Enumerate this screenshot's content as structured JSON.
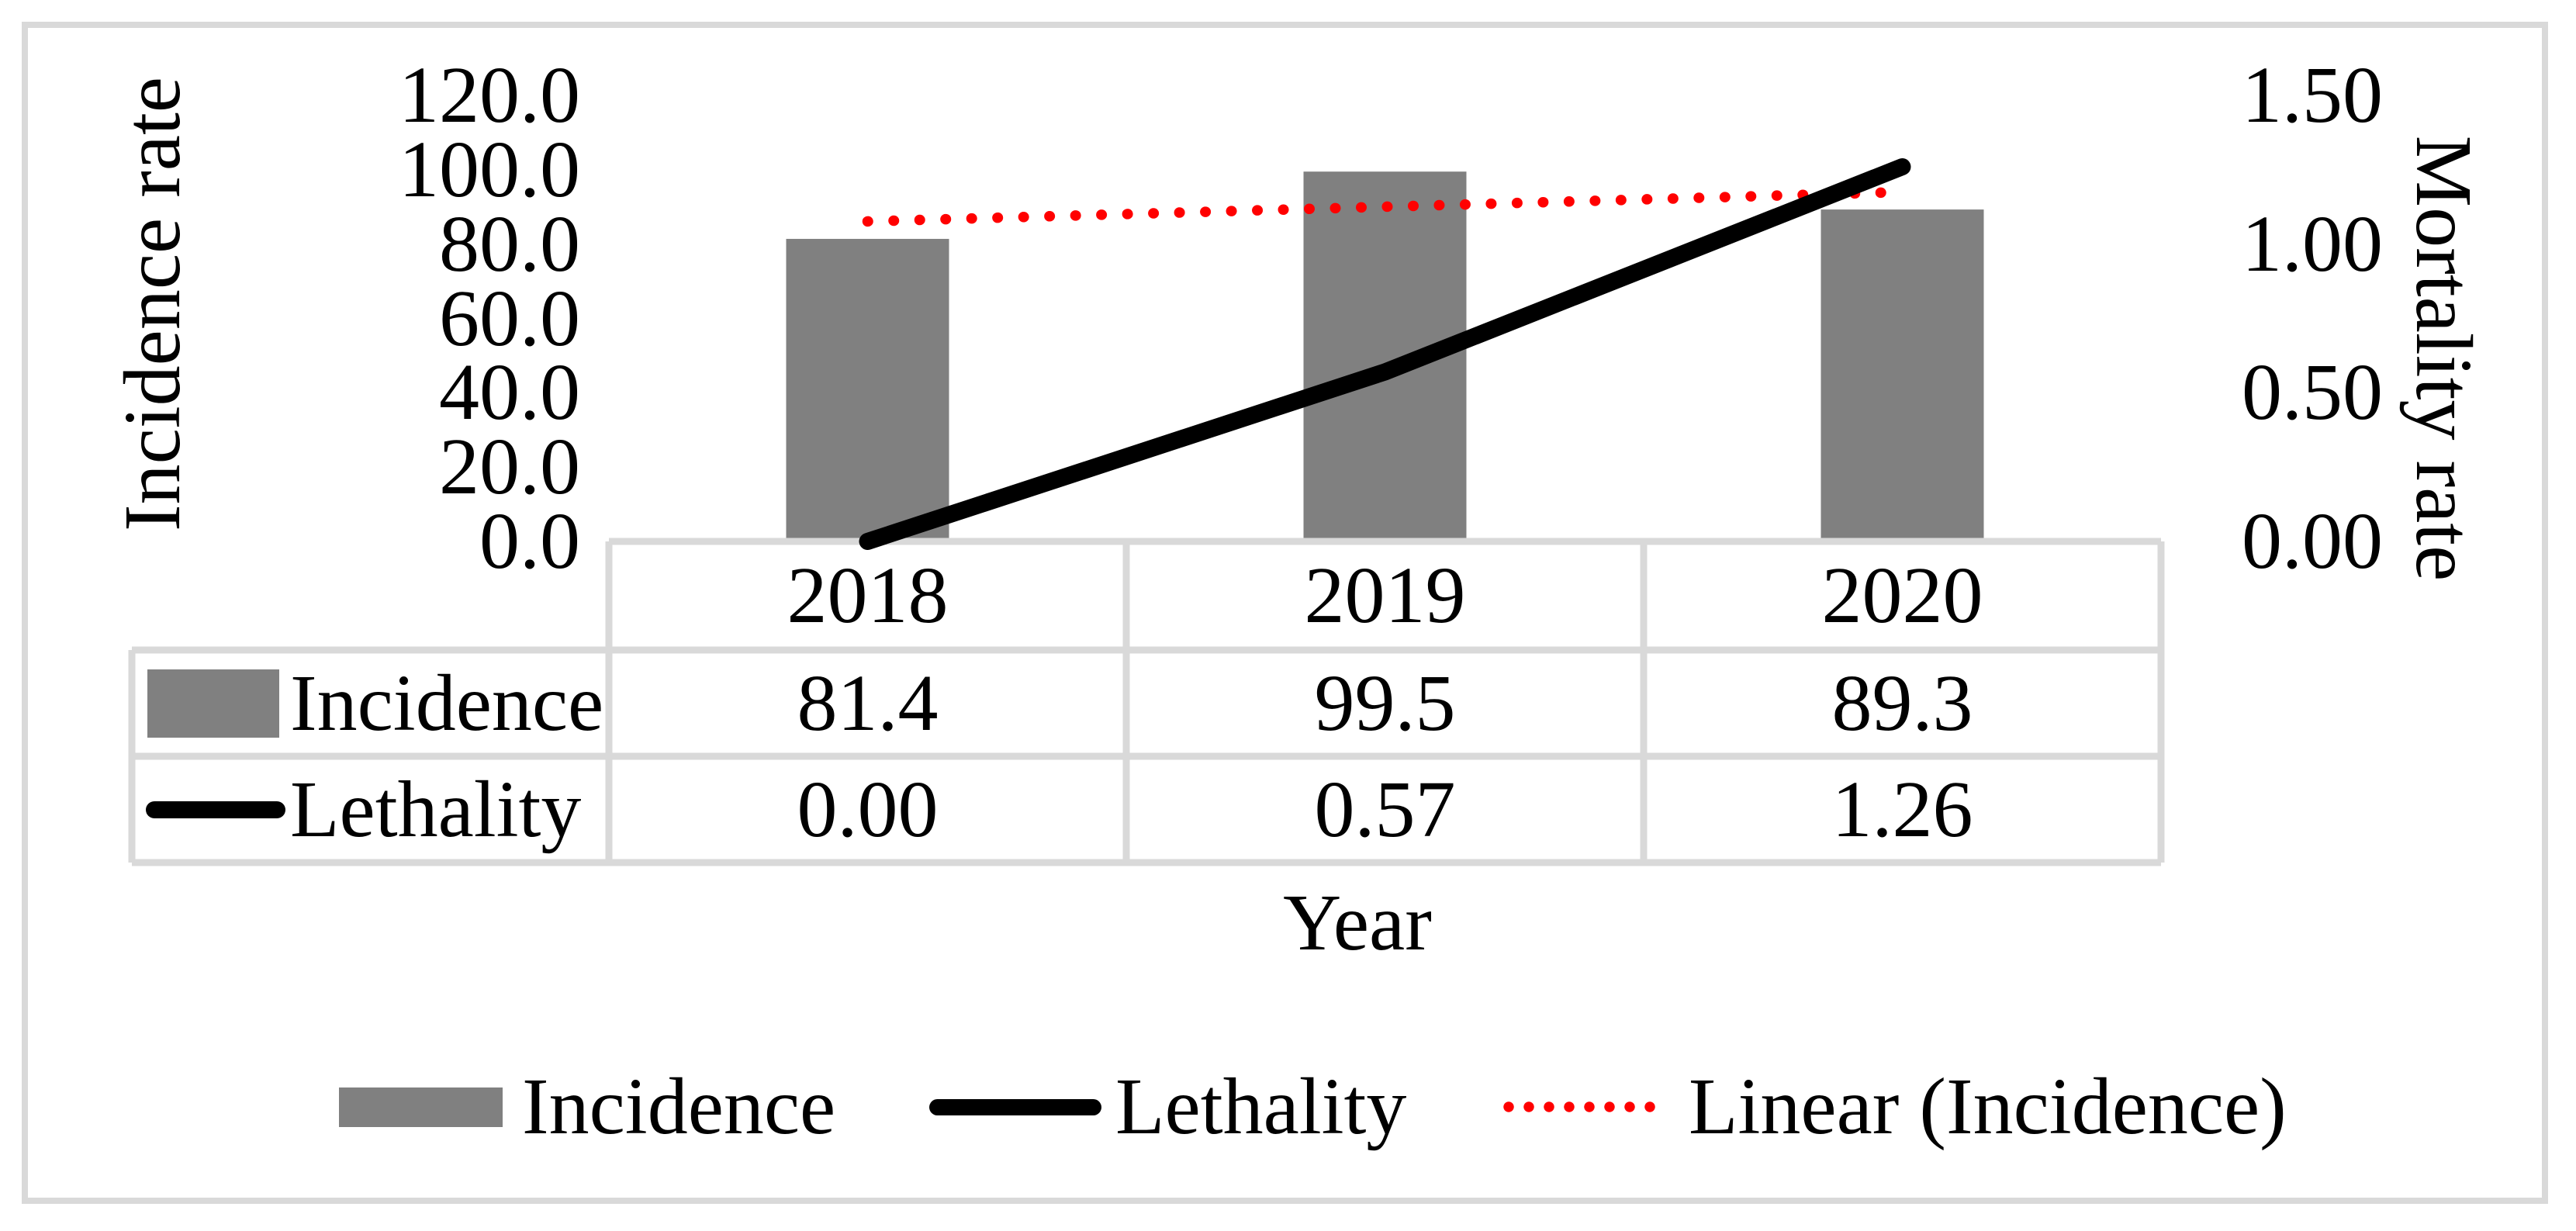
{
  "figure": {
    "background": "#FFFFFF",
    "frame_color": "#D9D9D9",
    "grid_color": "#D9D9D9"
  },
  "chart_data": {
    "type": "bar",
    "subtype": "bar-line-combo",
    "categories": [
      "2018",
      "2019",
      "2020"
    ],
    "series": [
      {
        "name": "Incidence",
        "type": "bar",
        "axis": "left",
        "color": "#808080",
        "values": [
          81.4,
          99.5,
          89.3
        ]
      },
      {
        "name": "Lethality",
        "type": "line",
        "axis": "right",
        "color": "#000000",
        "values": [
          0.0,
          0.57,
          1.26
        ]
      }
    ],
    "trendline": {
      "name": "Linear (Incidence)",
      "source_series": "Incidence",
      "style": "dotted",
      "color": "#FF0000",
      "axis": "left",
      "endpoint_values": [
        86.1,
        94.0
      ]
    },
    "left_axis": {
      "title": "Incidence rate",
      "min": 0,
      "max": 120,
      "step": 20,
      "tick_labels": [
        "120.0",
        "100.0",
        "80.0",
        "60.0",
        "40.0",
        "20.0",
        "0.0"
      ]
    },
    "right_axis": {
      "title": "Mortality rate",
      "min": 0,
      "max": 1.5,
      "step": 0.5,
      "tick_labels": [
        "1.50",
        "1.00",
        "0.50",
        "0.00"
      ]
    },
    "x_axis": {
      "title": "Year"
    },
    "grid": false,
    "legend_position": "bottom"
  },
  "data_table": {
    "column_headers": [
      "2018",
      "2019",
      "2020"
    ],
    "rows": [
      {
        "label": "Incidence",
        "key": "bar-swatch",
        "values": [
          "81.4",
          "99.5",
          "89.3"
        ]
      },
      {
        "label": "Lethality",
        "key": "line",
        "values": [
          "0.00",
          "0.57",
          "1.26"
        ]
      }
    ]
  },
  "legend": {
    "items": [
      {
        "label": "Incidence",
        "key": "bar-swatch",
        "color": "#808080"
      },
      {
        "label": "Lethality",
        "key": "line",
        "color": "#000000"
      },
      {
        "label": "Linear (Incidence)",
        "key": "dotted-line",
        "color": "#FF0000"
      }
    ]
  }
}
